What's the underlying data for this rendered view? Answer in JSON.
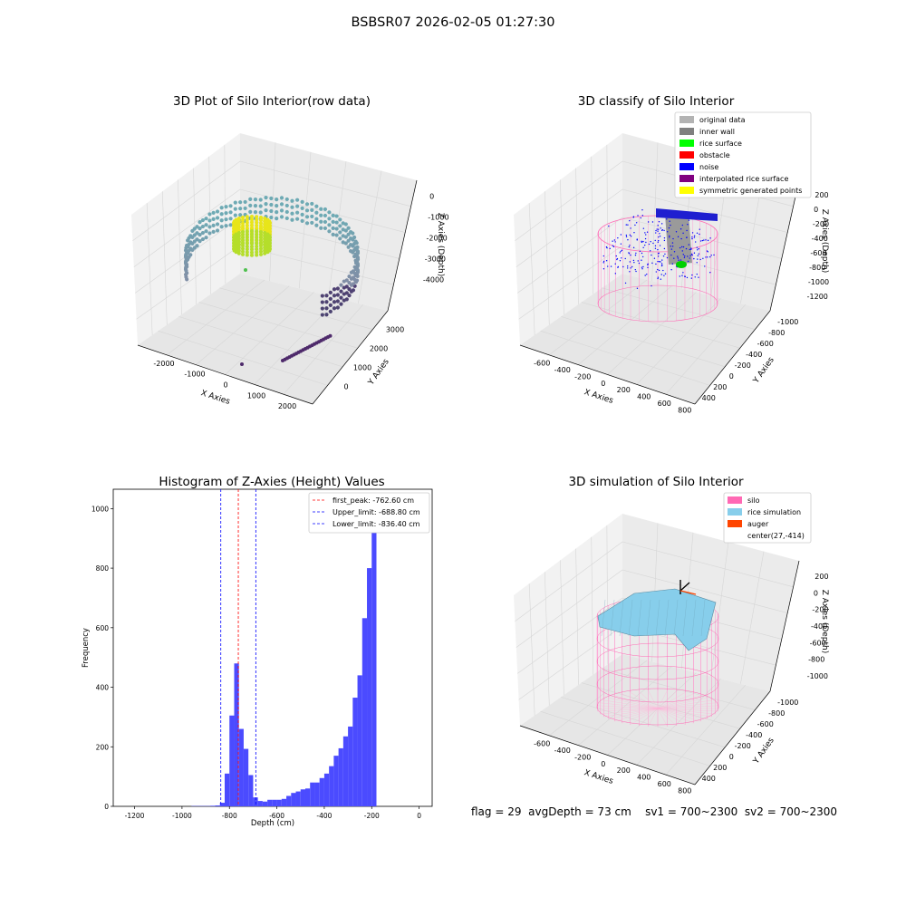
{
  "suptitle": "BSBSR07 2026-02-05 01:27:30",
  "footer": {
    "flag": "flag = 29",
    "avg": "avgDepth = 73 cm",
    "sv1": "sv1 = 700~2300",
    "sv2": "sv2 = 700~2300"
  },
  "colors": {
    "hist_bar": "#4b4bff",
    "first_peak": "#ff0000",
    "limit": "#0000ff",
    "silo": "#ff69b4",
    "rice_simulation": "#87ceeb",
    "auger": "#ff4500",
    "original_data": "#b3b3b3",
    "inner_wall": "#808080",
    "rice_surface": "#00ff00",
    "obstacle": "#ff0000",
    "noise": "#0000ff",
    "interpolated_rice_surface": "#800080",
    "symmetric_generated_points": "#ffff00"
  },
  "chart_data": [
    {
      "type": "scatter",
      "title": "3D Plot of Silo Interior(row data)",
      "xlabel": "X Axies",
      "ylabel": "Y Axies",
      "zlabel": "Z Axies (Depth)",
      "x_ticks": [
        "-2000",
        "-1000",
        "0",
        "1000",
        "2000"
      ],
      "y_ticks": [
        "0",
        "1000",
        "2000",
        "3000"
      ],
      "z_ticks": [
        "0",
        "-1000",
        "-2000",
        "-3000",
        "-4000"
      ],
      "colormap": "viridis"
    },
    {
      "type": "scatter",
      "title": "3D classify of Silo Interior",
      "xlabel": "X Axies",
      "ylabel": "Y Axies",
      "zlabel": "Z Axies (Depth)",
      "x_ticks": [
        "-600",
        "-400",
        "-200",
        "0",
        "200",
        "400",
        "600",
        "800"
      ],
      "y_ticks": [
        "400",
        "200",
        "0",
        "-200",
        "-400",
        "-600",
        "-800",
        "-1000"
      ],
      "z_ticks": [
        "200",
        "0",
        "-200",
        "-400",
        "-600",
        "-800",
        "-1000",
        "-1200"
      ],
      "legend": [
        {
          "label": "original data",
          "color": "#b3b3b3"
        },
        {
          "label": "inner wall",
          "color": "#808080"
        },
        {
          "label": "rice surface",
          "color": "#00ff00"
        },
        {
          "label": "obstacle",
          "color": "#ff0000"
        },
        {
          "label": "noise",
          "color": "#0000ff"
        },
        {
          "label": "interpolated rice surface",
          "color": "#800080"
        },
        {
          "label": "symmetric generated points",
          "color": "#ffff00"
        }
      ],
      "legend_position": "top-right"
    },
    {
      "type": "bar",
      "title": "Histogram of Z-Axies (Height) Values",
      "xlabel": "Depth (cm)",
      "ylabel": "Frequency",
      "xlim": [
        -1290,
        55
      ],
      "ylim": [
        0,
        1065
      ],
      "x_ticks": [
        -1200,
        -1000,
        -800,
        -600,
        -400,
        -200,
        0
      ],
      "y_ticks": [
        0,
        200,
        400,
        600,
        800,
        1000
      ],
      "bin_width": 20,
      "bins": [
        [
          -1300,
          0
        ],
        [
          -1280,
          0
        ],
        [
          -1260,
          0
        ],
        [
          -1240,
          0
        ],
        [
          -1220,
          0
        ],
        [
          -1200,
          0
        ],
        [
          -1180,
          0
        ],
        [
          -1160,
          0
        ],
        [
          -1140,
          0
        ],
        [
          -1120,
          0
        ],
        [
          -1100,
          0
        ],
        [
          -1080,
          0
        ],
        [
          -1060,
          0
        ],
        [
          -1040,
          0
        ],
        [
          -1020,
          0
        ],
        [
          -1000,
          0
        ],
        [
          -980,
          0
        ],
        [
          -960,
          1
        ],
        [
          -940,
          1
        ],
        [
          -920,
          1
        ],
        [
          -900,
          1
        ],
        [
          -880,
          2
        ],
        [
          -860,
          3
        ],
        [
          -840,
          12
        ],
        [
          -820,
          110
        ],
        [
          -800,
          305
        ],
        [
          -780,
          480
        ],
        [
          -760,
          260
        ],
        [
          -740,
          193
        ],
        [
          -720,
          105
        ],
        [
          -700,
          30
        ],
        [
          -680,
          18
        ],
        [
          -660,
          16
        ],
        [
          -640,
          22
        ],
        [
          -620,
          22
        ],
        [
          -600,
          22
        ],
        [
          -580,
          25
        ],
        [
          -560,
          35
        ],
        [
          -540,
          45
        ],
        [
          -520,
          50
        ],
        [
          -500,
          57
        ],
        [
          -480,
          60
        ],
        [
          -460,
          80
        ],
        [
          -440,
          80
        ],
        [
          -420,
          95
        ],
        [
          -400,
          110
        ],
        [
          -380,
          135
        ],
        [
          -360,
          170
        ],
        [
          -340,
          195
        ],
        [
          -320,
          235
        ],
        [
          -300,
          268
        ],
        [
          -280,
          365
        ],
        [
          -260,
          440
        ],
        [
          -240,
          632
        ],
        [
          -220,
          800
        ],
        [
          -200,
          1000
        ]
      ],
      "vlines": [
        {
          "label": "first_peak: -762.60 cm",
          "x": -762.6,
          "color": "#ff0000"
        },
        {
          "label": "Upper_limit: -688.80 cm",
          "x": -688.8,
          "color": "#0000ff"
        },
        {
          "label": "Lower_limit: -836.40 cm",
          "x": -836.4,
          "color": "#0000ff"
        }
      ],
      "legend_position": "top-right"
    },
    {
      "type": "area",
      "title": "3D simulation of Silo Interior",
      "xlabel": "X Axies",
      "ylabel": "Y Axies",
      "zlabel": "Z Axies (Depth)",
      "x_ticks": [
        "-600",
        "-400",
        "-200",
        "0",
        "200",
        "400",
        "600",
        "800"
      ],
      "y_ticks": [
        "400",
        "200",
        "0",
        "-200",
        "-400",
        "-600",
        "-800",
        "-1000"
      ],
      "z_ticks": [
        "200",
        "0",
        "-200",
        "-400",
        "-600",
        "-800",
        "-1000"
      ],
      "legend": [
        {
          "label": "silo",
          "color": "#ff69b4"
        },
        {
          "label": "rice simulation",
          "color": "#87ceeb"
        },
        {
          "label": "auger",
          "color": "#ff4500"
        },
        {
          "label": "center(27,-414)",
          "color": ""
        }
      ],
      "legend_position": "top-right"
    }
  ]
}
